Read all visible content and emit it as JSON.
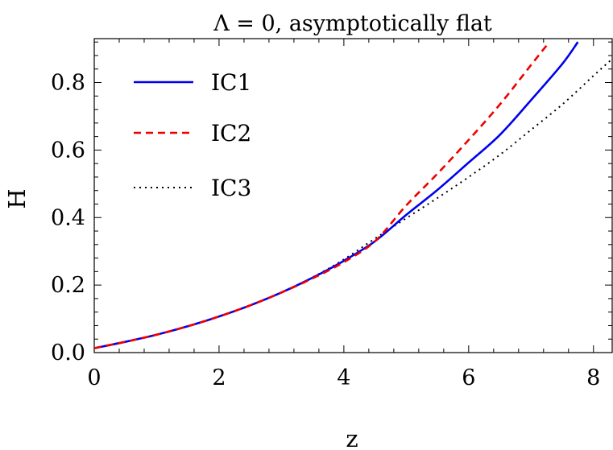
{
  "chart_data": {
    "type": "line",
    "title": "Λ = 0, asymptotically flat",
    "xlabel": "z",
    "ylabel": "H",
    "xlim": [
      0,
      8.3
    ],
    "ylim": [
      0,
      0.93
    ],
    "xticks": [
      0,
      2,
      4,
      6,
      8
    ],
    "xtick_labels": [
      "0",
      "2",
      "4",
      "6",
      "8"
    ],
    "yticks": [
      0.0,
      0.2,
      0.4,
      0.6,
      0.8
    ],
    "ytick_labels": [
      "0.0",
      "0.2",
      "0.4",
      "0.6",
      "0.8"
    ],
    "grid": false,
    "legend_position": "top-left",
    "series": [
      {
        "name": "IC1",
        "color": "#0000ee",
        "style": "solid",
        "x": [
          0,
          0.5,
          1,
          1.5,
          2,
          2.5,
          3,
          3.5,
          4,
          4.5,
          5,
          5.5,
          6,
          6.5,
          7,
          7.5,
          7.75
        ],
        "y": [
          0.013,
          0.032,
          0.053,
          0.078,
          0.107,
          0.14,
          0.178,
          0.222,
          0.272,
          0.33,
          0.408,
          0.482,
          0.563,
          0.645,
          0.748,
          0.855,
          0.92
        ]
      },
      {
        "name": "IC2",
        "color": "#ee0000",
        "style": "dashed",
        "x": [
          0,
          0.5,
          1,
          1.5,
          2,
          2.5,
          3,
          3.5,
          4,
          4.5,
          5,
          5.5,
          6,
          6.5,
          7,
          7.25
        ],
        "y": [
          0.013,
          0.032,
          0.053,
          0.078,
          0.107,
          0.14,
          0.178,
          0.22,
          0.268,
          0.33,
          0.436,
          0.53,
          0.63,
          0.735,
          0.852,
          0.91
        ]
      },
      {
        "name": "IC3",
        "color": "#000000",
        "style": "dotted",
        "x": [
          0,
          0.5,
          1,
          1.5,
          2,
          2.5,
          3,
          3.5,
          4,
          4.5,
          5,
          5.5,
          6,
          6.5,
          7,
          7.5,
          8,
          8.3
        ],
        "y": [
          0.013,
          0.032,
          0.053,
          0.078,
          0.107,
          0.14,
          0.178,
          0.223,
          0.276,
          0.338,
          0.398,
          0.458,
          0.52,
          0.586,
          0.66,
          0.735,
          0.82,
          0.87
        ]
      }
    ]
  }
}
